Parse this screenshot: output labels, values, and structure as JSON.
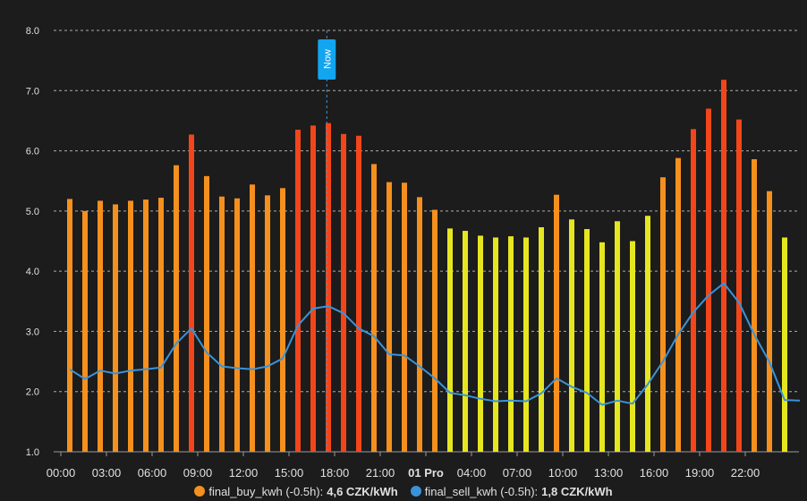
{
  "chart_data": {
    "type": "bar",
    "y_ticks": [
      "8.0",
      "7.0",
      "6.0",
      "5.0",
      "4.0",
      "3.0",
      "2.0",
      "1.0"
    ],
    "ylim": [
      1.0,
      8.0
    ],
    "x_ticks": [
      "00:00",
      "03:00",
      "06:00",
      "09:00",
      "12:00",
      "15:00",
      "18:00",
      "21:00",
      "01 Pro",
      "04:00",
      "07:00",
      "10:00",
      "13:00",
      "16:00",
      "19:00",
      "22:00"
    ],
    "now_label": "Now",
    "now_hour": 16.9,
    "series": [
      {
        "name": "final_buy_kwh",
        "kind": "bar",
        "values": [
          5.2,
          5.0,
          5.17,
          5.11,
          5.17,
          5.19,
          5.22,
          5.76,
          6.27,
          5.58,
          5.24,
          5.21,
          5.44,
          5.26,
          5.38,
          6.35,
          6.42,
          6.46,
          6.28,
          6.25,
          5.78,
          5.48,
          5.47,
          5.23,
          5.02,
          4.71,
          4.67,
          4.59,
          4.56,
          4.58,
          4.56,
          4.73,
          5.27,
          4.86,
          4.7,
          4.48,
          4.83,
          4.5,
          4.92,
          5.56,
          5.88,
          6.36,
          6.7,
          7.18,
          6.52,
          5.86,
          5.33,
          4.56
        ]
      },
      {
        "name": "final_sell_kwh",
        "kind": "line",
        "color": "#3a93d9",
        "values": [
          2.37,
          2.21,
          2.35,
          2.3,
          2.35,
          2.37,
          2.4,
          2.8,
          3.05,
          2.65,
          2.42,
          2.39,
          2.37,
          2.42,
          2.55,
          3.1,
          3.38,
          3.42,
          3.3,
          3.05,
          2.92,
          2.62,
          2.6,
          2.42,
          2.22,
          1.98,
          1.94,
          1.88,
          1.84,
          1.85,
          1.84,
          1.97,
          2.22,
          2.08,
          1.98,
          1.78,
          1.85,
          1.8,
          2.12,
          2.5,
          2.95,
          3.32,
          3.6,
          3.8,
          3.48,
          2.95,
          2.49,
          1.86,
          1.85
        ]
      }
    ],
    "bar_colors": {
      "low": "#e6e620",
      "mid": "#f5901e",
      "high": "#f2461a"
    },
    "grid": true
  },
  "legend": [
    {
      "label": "final_buy_kwh (-0.5h):",
      "value": "4,6 CZK/kWh",
      "color": "#f5901e"
    },
    {
      "label": "final_sell_kwh (-0.5h):",
      "value": "1,8 CZK/kWh",
      "color": "#3a93d9"
    }
  ]
}
